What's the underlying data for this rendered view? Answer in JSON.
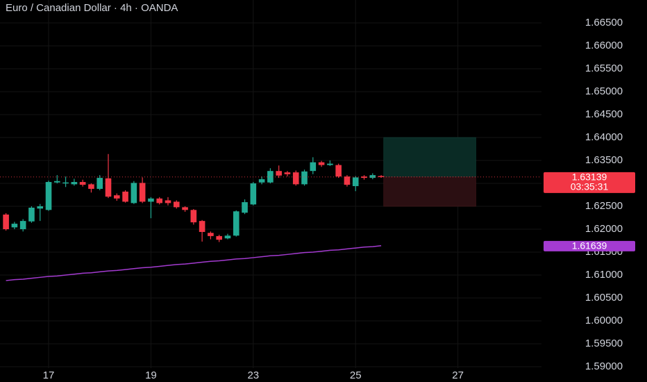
{
  "chart_data": {
    "type": "candlestick",
    "title": "Euro / Canadian Dollar · 4h · OANDA",
    "up_color": "#22ab94",
    "down_color": "#f23645",
    "grid": true,
    "xlim": [
      -0.7,
      62.8
    ],
    "xticks": [
      {
        "value": 5,
        "label": "17"
      },
      {
        "value": 17,
        "label": "19"
      },
      {
        "value": 29,
        "label": "23"
      },
      {
        "value": 41,
        "label": "25"
      },
      {
        "value": 53,
        "label": "27"
      }
    ],
    "ylim": [
      1.5897,
      1.67
    ],
    "yticks": [
      {
        "value": 1.59,
        "label": "1.59000"
      },
      {
        "value": 1.595,
        "label": "1.59500"
      },
      {
        "value": 1.6,
        "label": "1.60000"
      },
      {
        "value": 1.605,
        "label": "1.60500"
      },
      {
        "value": 1.61,
        "label": "1.61000"
      },
      {
        "value": 1.615,
        "label": "1.61500"
      },
      {
        "value": 1.62,
        "label": "1.62000"
      },
      {
        "value": 1.625,
        "label": "1.62500"
      },
      {
        "value": 1.63,
        "label": "1.63000"
      },
      {
        "value": 1.635,
        "label": "1.63500"
      },
      {
        "value": 1.64,
        "label": "1.64000"
      },
      {
        "value": 1.645,
        "label": "1.64500"
      },
      {
        "value": 1.65,
        "label": "1.65000"
      },
      {
        "value": 1.655,
        "label": "1.65500"
      },
      {
        "value": 1.66,
        "label": "1.66000"
      },
      {
        "value": 1.665,
        "label": "1.66500"
      }
    ],
    "open": [
      1.6232,
      1.6204,
      1.62,
      1.6217,
      1.6245,
      1.6242,
      1.6302,
      1.63,
      1.6298,
      1.6303,
      1.6298,
      1.6288,
      1.6311,
      1.6274,
      1.6282,
      1.6257,
      1.6301,
      1.626,
      1.6267,
      1.6263,
      1.626,
      1.6248,
      1.6242,
      1.6218,
      1.6192,
      1.6185,
      1.618,
      1.6186,
      1.6236,
      1.6254,
      1.6302,
      1.6302,
      1.6327,
      1.6324,
      1.6324,
      1.6298,
      1.6327,
      1.6346,
      1.634,
      1.634,
      1.6315,
      1.6294,
      1.6315,
      1.6312,
      1.6316
    ],
    "high": [
      1.6235,
      1.6216,
      1.6222,
      1.625,
      1.6255,
      1.6306,
      1.6318,
      1.6315,
      1.631,
      1.6308,
      1.63,
      1.6318,
      1.6364,
      1.6278,
      1.6285,
      1.6305,
      1.6313,
      1.627,
      1.627,
      1.627,
      1.6263,
      1.625,
      1.6244,
      1.622,
      1.6195,
      1.6188,
      1.619,
      1.6241,
      1.6265,
      1.6303,
      1.6315,
      1.6333,
      1.6339,
      1.6327,
      1.6328,
      1.633,
      1.6357,
      1.6349,
      1.635,
      1.6343,
      1.6318,
      1.6316,
      1.6318,
      1.6322,
      1.6318
    ],
    "low": [
      1.6197,
      1.62,
      1.6195,
      1.6214,
      1.6218,
      1.624,
      1.63,
      1.6292,
      1.6295,
      1.6293,
      1.628,
      1.6285,
      1.6268,
      1.6262,
      1.6258,
      1.6255,
      1.6257,
      1.6224,
      1.6254,
      1.6252,
      1.6245,
      1.6238,
      1.621,
      1.6173,
      1.6178,
      1.6172,
      1.6178,
      1.6184,
      1.6233,
      1.6252,
      1.6298,
      1.63,
      1.6312,
      1.6315,
      1.6295,
      1.6295,
      1.632,
      1.6336,
      1.6338,
      1.6312,
      1.6293,
      1.6283,
      1.6308,
      1.6309,
      1.6312
    ],
    "close": [
      1.62,
      1.6212,
      1.6218,
      1.6247,
      1.625,
      1.6303,
      1.6305,
      1.6302,
      1.6303,
      1.6297,
      1.6288,
      1.6312,
      1.6271,
      1.6267,
      1.626,
      1.6301,
      1.626,
      1.6267,
      1.6257,
      1.6257,
      1.6248,
      1.6242,
      1.6215,
      1.6194,
      1.6185,
      1.6177,
      1.6186,
      1.6239,
      1.6259,
      1.63,
      1.6309,
      1.6327,
      1.6317,
      1.632,
      1.6298,
      1.6326,
      1.6346,
      1.634,
      1.6343,
      1.6315,
      1.6297,
      1.6313,
      1.6312,
      1.6318,
      1.63139
    ],
    "ma": {
      "color": "#a43bd1",
      "values": [
        1.6088,
        1.609,
        1.6091,
        1.6093,
        1.6095,
        1.6097,
        1.6098,
        1.61,
        1.6102,
        1.6104,
        1.6105,
        1.6107,
        1.6109,
        1.611,
        1.6112,
        1.6114,
        1.6116,
        1.6117,
        1.6119,
        1.6121,
        1.6123,
        1.6124,
        1.6126,
        1.6128,
        1.613,
        1.6131,
        1.6133,
        1.6135,
        1.6136,
        1.6138,
        1.614,
        1.6142,
        1.6143,
        1.6145,
        1.6147,
        1.6149,
        1.615,
        1.6152,
        1.6154,
        1.6155,
        1.6157,
        1.6159,
        1.6161,
        1.6162,
        1.6164
      ]
    },
    "last_price": {
      "value": 1.63139,
      "label": "1.63139"
    },
    "countdown": "03:35:31",
    "ma_price": {
      "value": 1.61639,
      "label": "1.61639"
    },
    "position": {
      "x_start": 44.3,
      "x_end": 55.1,
      "entry": 1.63139,
      "target": 1.64,
      "stop": 1.625
    }
  }
}
